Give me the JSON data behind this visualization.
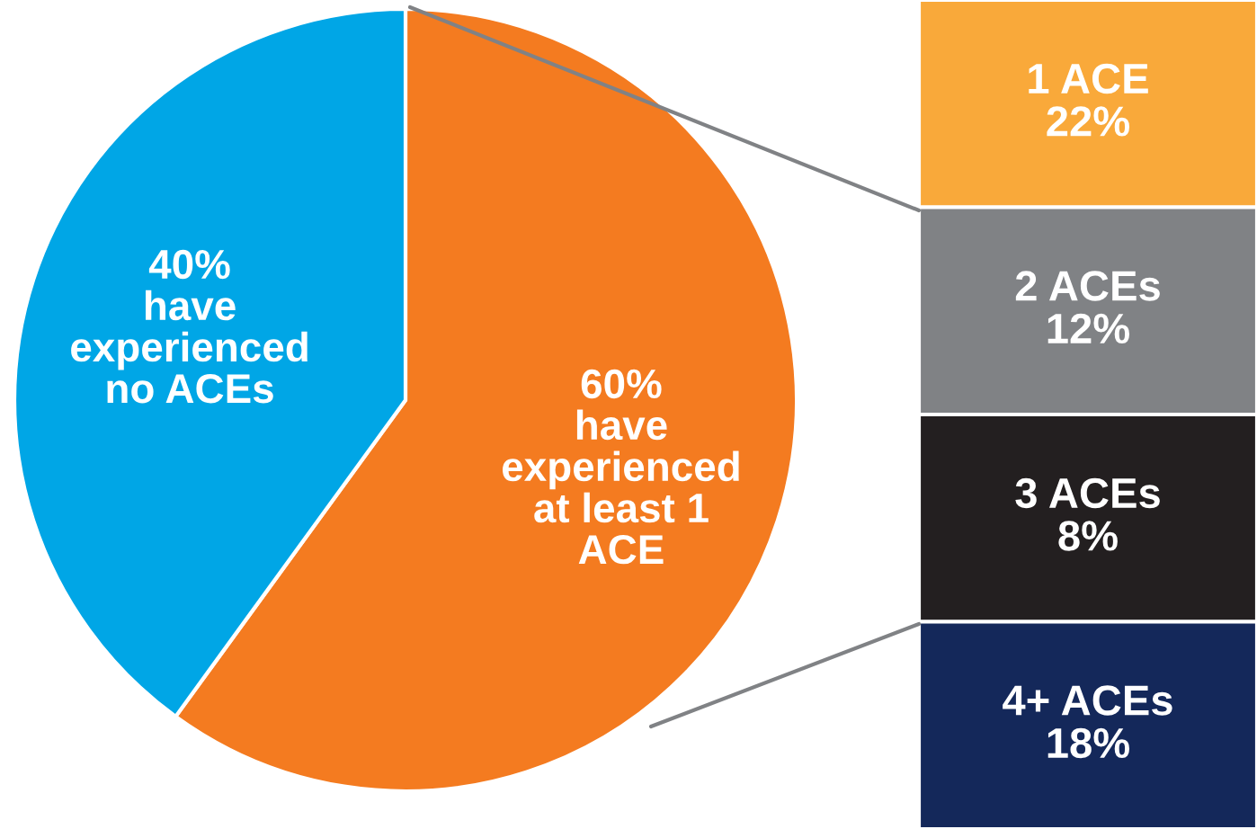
{
  "chart_data": [
    {
      "type": "pie",
      "categories": [
        "have\nexperienced\nat least 1\nACE",
        "have\nexperienced\nno ACEs"
      ],
      "values": [
        60,
        40
      ],
      "colors": [
        "#f47b20",
        "#00a6e6"
      ],
      "value_labels": [
        "60%",
        "40%"
      ]
    },
    {
      "type": "other",
      "categories": [
        "1 ACE",
        "2 ACEs",
        "3 ACEs",
        "4+ ACEs"
      ],
      "colors": [
        "#f9a93a",
        "#808285",
        "#231f20",
        "#14285a"
      ],
      "value_labels": [
        "22%",
        "12%",
        "8%",
        "18%"
      ]
    }
  ]
}
